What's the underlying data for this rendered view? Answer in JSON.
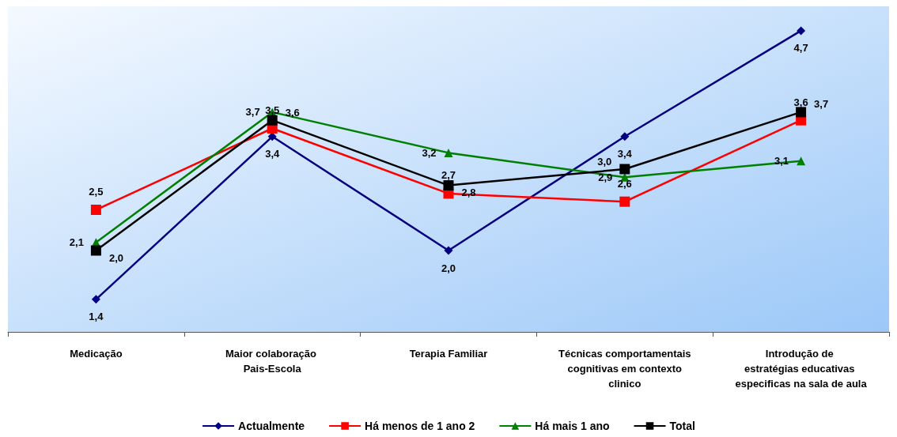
{
  "chart_data": {
    "type": "line",
    "categories": [
      "Medicação",
      "Maior colaboração Pais-Escola",
      "Terapia Familiar",
      "Técnicas comportamentais cognitivas em contexto clinico",
      "Introdução de estratégias educativas especificas na sala de aula"
    ],
    "series": [
      {
        "name": "Actualmente",
        "color": "#000080",
        "marker": "diamond",
        "values": [
          1.4,
          3.4,
          2.0,
          3.4,
          4.7
        ],
        "value_labels": [
          "1,4",
          "3,4",
          "2,0",
          "3,4",
          "4,7"
        ]
      },
      {
        "name": "Há menos de 1 ano 2",
        "color": "#ff0000",
        "marker": "square",
        "values": [
          2.5,
          3.5,
          2.7,
          2.6,
          3.6
        ],
        "value_labels": [
          "2,5",
          "3,5",
          "2,7",
          "2,6",
          "3,6"
        ]
      },
      {
        "name": "Há mais 1 ano",
        "color": "#008000",
        "marker": "triangle",
        "values": [
          2.1,
          3.7,
          3.2,
          2.9,
          3.1
        ],
        "value_labels": [
          "2,1",
          "3,7",
          "3,2",
          "2,9",
          "3,1"
        ]
      },
      {
        "name": "Total",
        "color": "#000000",
        "marker": "square",
        "values": [
          2.0,
          3.6,
          2.8,
          3.0,
          3.7
        ],
        "value_labels": [
          "2,0",
          "3,6",
          "2,8",
          "3,0",
          "3,7"
        ]
      }
    ],
    "ylim": [
      1,
      5
    ],
    "legend": "bottom",
    "line_style": "solid"
  }
}
